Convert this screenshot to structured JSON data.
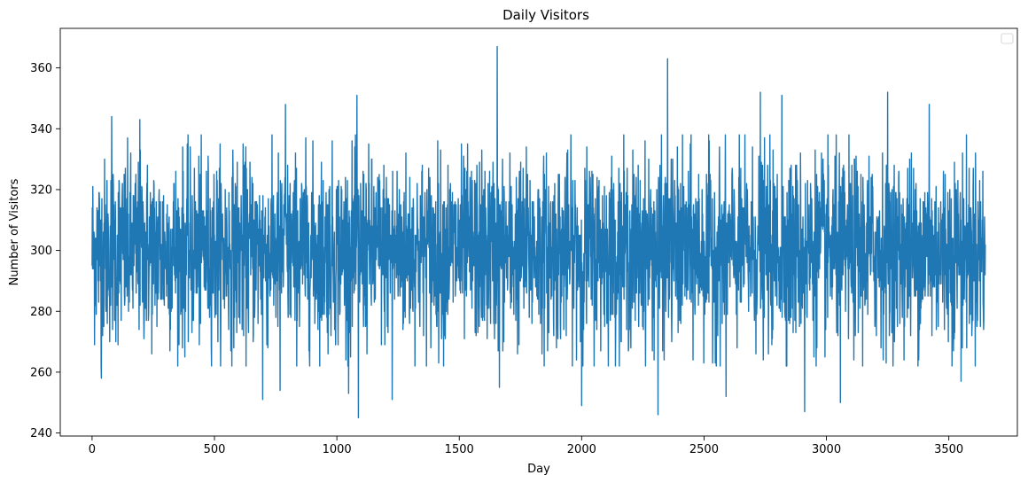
{
  "chart_data": {
    "type": "line",
    "title": "Daily Visitors",
    "xlabel": "Day",
    "ylabel": "Number of Visitors",
    "xlim": [
      -130,
      3780
    ],
    "ylim": [
      239,
      373
    ],
    "xticks": [
      0,
      500,
      1000,
      1500,
      2000,
      2500,
      3000,
      3500
    ],
    "yticks": [
      240,
      260,
      280,
      300,
      320,
      340,
      360
    ],
    "grid": false,
    "legend": "top-right (empty)",
    "series": [
      {
        "color": "#1f77b4",
        "n_points": 3650,
        "x_start": 0,
        "x_end": 3649,
        "mean": 300,
        "std": 15,
        "extremes": [
          {
            "x": 38,
            "y": 258
          },
          {
            "x": 80,
            "y": 344
          },
          {
            "x": 195,
            "y": 343
          },
          {
            "x": 697,
            "y": 251
          },
          {
            "x": 768,
            "y": 254
          },
          {
            "x": 790,
            "y": 348
          },
          {
            "x": 1048,
            "y": 253
          },
          {
            "x": 1082,
            "y": 351
          },
          {
            "x": 1088,
            "y": 245
          },
          {
            "x": 1226,
            "y": 251
          },
          {
            "x": 1655,
            "y": 367
          },
          {
            "x": 1664,
            "y": 255
          },
          {
            "x": 2000,
            "y": 249
          },
          {
            "x": 2312,
            "y": 246
          },
          {
            "x": 2351,
            "y": 363
          },
          {
            "x": 2590,
            "y": 252
          },
          {
            "x": 2730,
            "y": 352
          },
          {
            "x": 2818,
            "y": 351
          },
          {
            "x": 2911,
            "y": 247
          },
          {
            "x": 3057,
            "y": 250
          },
          {
            "x": 3250,
            "y": 352
          },
          {
            "x": 3420,
            "y": 348
          },
          {
            "x": 3550,
            "y": 257
          }
        ]
      }
    ]
  }
}
